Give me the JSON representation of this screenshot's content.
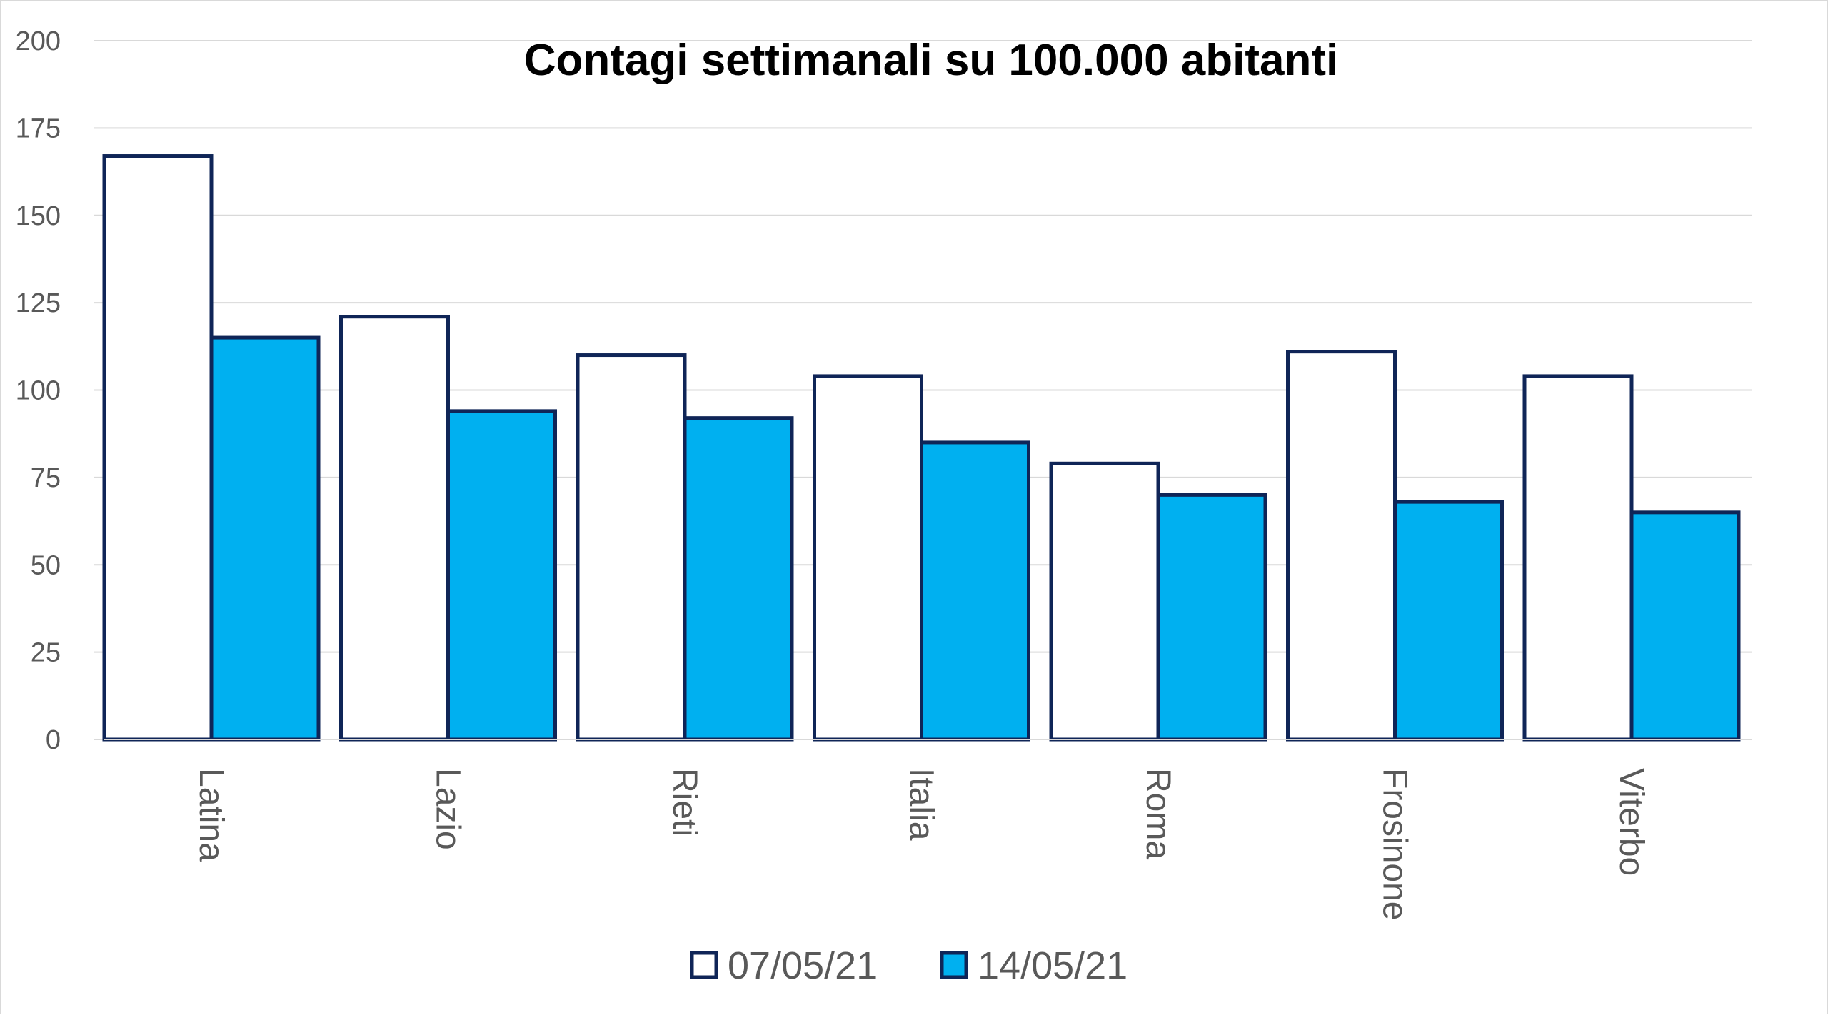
{
  "chart_data": {
    "type": "bar",
    "title": "Contagi settimanali su 100.000 abitanti",
    "xlabel": "",
    "ylabel": "",
    "categories": [
      "Latina",
      "Lazio",
      "Rieti",
      "Italia",
      "Roma",
      "Frosinone",
      "Viterbo"
    ],
    "series": [
      {
        "name": "07/05/21",
        "values": [
          167,
          121,
          110,
          104,
          79,
          111,
          104
        ],
        "color": "#ffffff"
      },
      {
        "name": "14/05/21",
        "values": [
          115,
          94,
          92,
          85,
          70,
          68,
          65
        ],
        "color": "#00b0f0"
      }
    ],
    "ylim": [
      0,
      200
    ],
    "yticks": [
      "0",
      "25",
      "50",
      "75",
      "100",
      "125",
      "150",
      "175",
      "200"
    ],
    "bar_outline_color": "#0f2557",
    "grid": true,
    "legend_position": "bottom"
  }
}
